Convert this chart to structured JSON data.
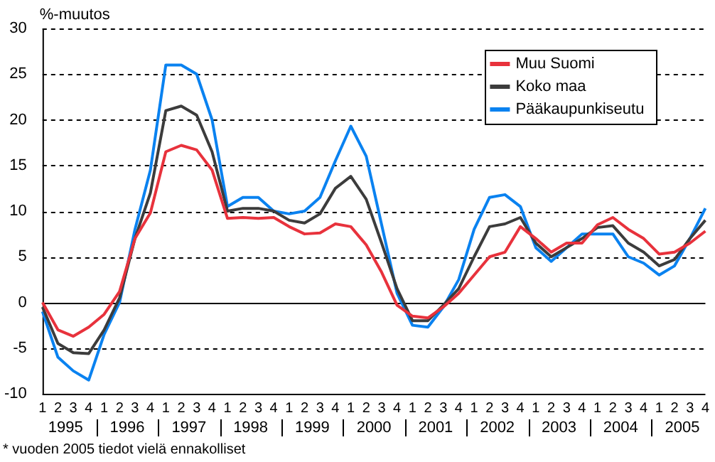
{
  "chart_data": {
    "type": "line",
    "ylabel": "%-muutos",
    "categories": [
      "1",
      "2",
      "3",
      "4",
      "1",
      "2",
      "3",
      "4",
      "1",
      "2",
      "3",
      "4",
      "1",
      "2",
      "3",
      "4",
      "1",
      "2",
      "3",
      "4",
      "1",
      "2",
      "3",
      "4",
      "1",
      "2",
      "3",
      "4",
      "1",
      "2",
      "3",
      "4",
      "1",
      "2",
      "3",
      "4",
      "1",
      "2",
      "3",
      "4",
      "1",
      "2",
      "3",
      "4"
    ],
    "series": [
      {
        "name": "Muu Suomi",
        "color": "#e8323c",
        "values": [
          0,
          -3,
          -3.7,
          -2.7,
          -1.3,
          1.2,
          7,
          9.8,
          16.5,
          17.2,
          16.7,
          14.5,
          9.2,
          9.3,
          9.2,
          9.3,
          8.3,
          7.5,
          7.6,
          8.6,
          8.3,
          6.3,
          3.3,
          -0.3,
          -1.5,
          -1.7,
          -0.5,
          1,
          3,
          5,
          5.5,
          8.3,
          7,
          5.5,
          6.5,
          6.5,
          8.5,
          9.3,
          8,
          7,
          5.3,
          5.5,
          6.5,
          7.8
        ]
      },
      {
        "name": "Koko maa",
        "color": "#3c3c3c",
        "values": [
          -0.5,
          -4.5,
          -5.5,
          -5.6,
          -3,
          0.5,
          7,
          12,
          21,
          21.5,
          20.5,
          16.5,
          10,
          10.3,
          10.3,
          10,
          9,
          8.7,
          9.7,
          12.5,
          13.8,
          11.3,
          6.5,
          1.5,
          -2,
          -2,
          -0.3,
          1.5,
          5,
          8.3,
          8.6,
          9.3,
          6.5,
          5,
          6,
          7,
          8.2,
          8.4,
          6.5,
          5.5,
          4,
          4.7,
          7,
          9
        ]
      },
      {
        "name": "Pääkaupunkiseutu",
        "color": "#0a82f0",
        "values": [
          -1,
          -6,
          -7.5,
          -8.5,
          -3.5,
          0,
          8,
          14.5,
          26,
          26,
          25,
          20,
          10.5,
          11.5,
          11.5,
          10,
          9.7,
          10,
          11.5,
          15.5,
          19.3,
          16,
          8.5,
          1,
          -2.5,
          -2.7,
          -0.5,
          2.5,
          8,
          11.5,
          11.8,
          10.5,
          6,
          4.5,
          6,
          7.5,
          7.5,
          7.5,
          5,
          4.3,
          3,
          4,
          7,
          10.3
        ]
      }
    ],
    "ylim": [
      -10,
      30
    ],
    "yticks": [
      -10,
      -5,
      0,
      5,
      10,
      15,
      20,
      25,
      30
    ],
    "grid": "y",
    "legend": "top right",
    "marker": "none",
    "annotations": [
      "1995",
      "1996",
      "1997",
      "1998",
      "1999",
      "2000",
      "2001",
      "2002",
      "2003",
      "2004",
      "2005",
      "* vuoden 2005 tiedot vielä ennakolliset"
    ]
  }
}
